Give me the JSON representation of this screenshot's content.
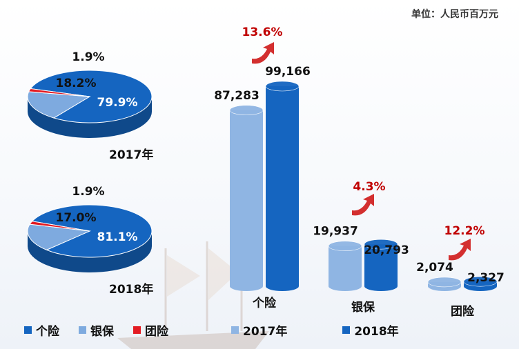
{
  "unit": "单位：人民币百万元",
  "chart_data": [
    {
      "type": "pie",
      "title": "2017年",
      "labels": [
        "个险",
        "银保",
        "团险"
      ],
      "values": [
        79.9,
        18.2,
        1.9
      ],
      "value_labels": [
        "79.9%",
        "18.2%",
        "1.9%"
      ]
    },
    {
      "type": "pie",
      "title": "2018年",
      "labels": [
        "个险",
        "银保",
        "团险"
      ],
      "values": [
        81.1,
        17.0,
        1.9
      ],
      "value_labels": [
        "81.1%",
        "17.0%",
        "1.9%"
      ]
    },
    {
      "type": "bar",
      "categories": [
        "个险",
        "银保",
        "团险"
      ],
      "series": [
        {
          "name": "2017年",
          "values": [
            87283,
            19937,
            2074
          ],
          "labels": [
            "87,283",
            "19,937",
            "2,074"
          ]
        },
        {
          "name": "2018年",
          "values": [
            99166,
            20793,
            2327
          ],
          "labels": [
            "99,166",
            "20,793",
            "2,327"
          ]
        }
      ],
      "growth": [
        "13.6%",
        "4.3%",
        "12.2%"
      ]
    }
  ],
  "pie_legend": [
    {
      "label": "个险",
      "color": "#1565c0"
    },
    {
      "label": "银保",
      "color": "#7eaadf"
    },
    {
      "label": "团险",
      "color": "#e31b23"
    }
  ],
  "bar_legend": [
    {
      "label": "2017年",
      "color": "#8fb5e3"
    },
    {
      "label": "2018年",
      "color": "#1565c0"
    }
  ],
  "colors": {
    "personal": "#1565c0",
    "banc": "#7eaadf",
    "group": "#e31b23",
    "bar2017": "#8fb5e3",
    "bar2018": "#1565c0",
    "growth": "#c00000"
  }
}
